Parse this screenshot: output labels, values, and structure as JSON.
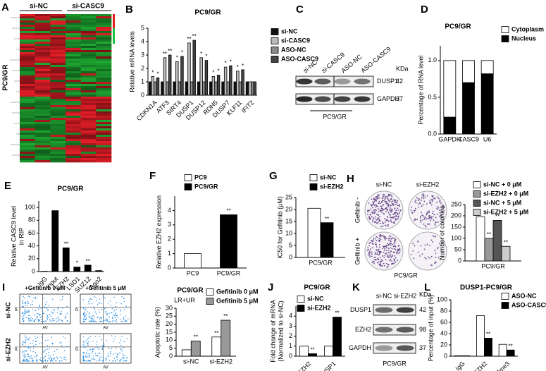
{
  "figure": {
    "A": {
      "panel": "A",
      "groups": [
        "si-NC",
        "si-CASC9"
      ],
      "cell": "PC9/GR"
    },
    "C": {
      "panel": "C",
      "lanes": [
        "si-NC",
        "si-CASC9",
        "ASO-NC",
        "ASO-CASC9"
      ],
      "unit": "KDa",
      "rows": [
        {
          "name": "DUSP1",
          "kda": 42
        },
        {
          "name": "GAPDH",
          "kda": 37
        }
      ],
      "cell": "PC9/GR"
    },
    "H": {
      "panel": "H",
      "columns": [
        "si-NC",
        "si-EZH2"
      ],
      "rows": [
        "Geftinib -",
        "Geftinib +"
      ],
      "cell": "PC9/GR"
    },
    "I": {
      "panel": "I",
      "columns": [
        "+Gefitinib 0 μM",
        "+Gefitinib 5 μM"
      ],
      "rows": [
        "si-NC",
        "si-EZH2"
      ],
      "xaxis": "AV",
      "yaxis": "PI"
    },
    "K": {
      "panel": "K",
      "lanes": [
        "si-NC",
        "si-EZH2"
      ],
      "unit": "KDa",
      "rows": [
        {
          "name": "DUSP1",
          "kda": 42
        },
        {
          "name": "EZH2",
          "kda": 98
        },
        {
          "name": "GAPDH",
          "kda": 37
        }
      ],
      "cell": "PC9/GR"
    }
  },
  "chart_data": [
    {
      "type": "bar",
      "panel": "B",
      "title": "PC9/GR",
      "ylabel": "Relative mRNA levels",
      "categories": [
        "CDKN1A",
        "ATF3",
        "SIRT4",
        "DUSP1",
        "DUSP12",
        "RDH5",
        "DUSP7",
        "KLF11",
        "IFIT2"
      ],
      "ylim": [
        0,
        5
      ],
      "yticks": [
        0,
        1,
        2,
        3,
        4,
        5
      ],
      "series": [
        {
          "name": "si-NC",
          "color": "#111111",
          "values": [
            1,
            1,
            1,
            1,
            1,
            1,
            1,
            1,
            1
          ]
        },
        {
          "name": "si-CASC9",
          "color": "#bbbbbb",
          "values": [
            1.4,
            2.8,
            2.5,
            3.9,
            2.8,
            1.4,
            2.1,
            1.8,
            1.0
          ],
          "annotations": [
            "*",
            "**",
            "*",
            "**",
            "*",
            "*",
            "*",
            "*",
            null
          ]
        },
        {
          "name": "ASO-NC",
          "color": "#888888",
          "values": [
            1,
            1,
            1,
            1,
            1,
            1,
            1,
            1,
            1
          ]
        },
        {
          "name": "ASO-CASC9",
          "color": "#444444",
          "values": [
            1.3,
            3.0,
            2.9,
            4.1,
            2.6,
            1.5,
            2.2,
            1.9,
            1.0
          ],
          "annotations": [
            "*",
            "**",
            "*",
            "**",
            "*",
            "*",
            "*",
            "*",
            null
          ]
        }
      ]
    },
    {
      "type": "bar",
      "stacked": true,
      "panel": "D",
      "title": "PC9/GR",
      "ylabel": "Percentage of RNA level",
      "categories": [
        "GAPDH",
        "CASC9",
        "U6"
      ],
      "ylim": [
        0,
        1.2
      ],
      "yticks": [
        {
          "value": 0,
          "label": "0.0"
        },
        {
          "value": 0.5,
          "label": "0.5"
        },
        {
          "value": 1,
          "label": "1.0"
        }
      ],
      "series": [
        {
          "name": "Nucleus",
          "color": "#000000",
          "values": [
            0.23,
            0.7,
            0.82
          ]
        },
        {
          "name": "Cytoplasm",
          "color": "#ffffff",
          "values": [
            0.77,
            0.3,
            0.18
          ]
        }
      ]
    },
    {
      "type": "bar",
      "panel": "E",
      "title": "PC9/GR",
      "ylabel": [
        "Relative CASC9 level",
        "in RIP"
      ],
      "categories": [
        "IgG",
        "Input",
        "EZH2",
        "LSD1",
        "SUZ12",
        "Ago2"
      ],
      "values": [
        0.5,
        95,
        37,
        7,
        10,
        1.5
      ],
      "color": "#000000",
      "annotations": [
        null,
        null,
        "**",
        "*",
        "**",
        null
      ],
      "ylim": [
        0,
        110
      ],
      "yticks": [
        0,
        20,
        40,
        60,
        80,
        100
      ]
    },
    {
      "type": "bar",
      "panel": "F",
      "ylabel": "Relative EZH2 expression",
      "categories": [
        "PC9",
        "PC9/GR"
      ],
      "ylim": [
        0,
        5
      ],
      "yticks": [
        0,
        1,
        2,
        3,
        4
      ],
      "series": [
        {
          "name": "PC9",
          "color": "#ffffff",
          "values": [
            1,
            null
          ]
        },
        {
          "name": "PC9/GR",
          "color": "#000000",
          "values": [
            null,
            3.7
          ],
          "annotations": [
            null,
            "**"
          ]
        }
      ]
    },
    {
      "type": "bar",
      "panel": "G",
      "ylabel": "IC50 for Gefitinib (μM)",
      "categories": [
        "PC9/GR"
      ],
      "ylim": [
        0,
        25
      ],
      "yticks": [
        0,
        5,
        10,
        15,
        20,
        25
      ],
      "series": [
        {
          "name": "si-NC",
          "color": "#ffffff",
          "values": [
            20.5
          ]
        },
        {
          "name": "si-EZH2",
          "color": "#000000",
          "values": [
            14.5
          ],
          "annotations": [
            "**"
          ]
        }
      ]
    },
    {
      "type": "bar",
      "ylabel": "Number of colonies",
      "categories": [
        "PC9/GR"
      ],
      "ylim": [
        0,
        250
      ],
      "yticks": [
        0,
        50,
        100,
        150,
        200,
        250
      ],
      "series": [
        {
          "name": "si-NC + 0 μM",
          "color": "#ffffff",
          "values": [
            195
          ]
        },
        {
          "name": "si-EZH2 + 0 μM",
          "color": "#999999",
          "values": [
            100
          ],
          "annotations": [
            "**"
          ]
        },
        {
          "name": "si-NC + 5 μM",
          "color": "#555555",
          "values": [
            180
          ],
          "annotations": [
            "**"
          ]
        },
        {
          "name": "si-EZH2 + 5 μM",
          "color": "#cccccc",
          "values": [
            65
          ],
          "annotations": [
            "**"
          ]
        }
      ]
    },
    {
      "type": "bar",
      "title": "PC9/GR",
      "subtitle": "LR+UR",
      "ylabel": "Apoptotic rate (%)",
      "categories": [
        "si-NC",
        "si-EZH2"
      ],
      "ylim": [
        0,
        30
      ],
      "yticks": [
        0,
        5,
        10,
        15,
        20,
        25,
        30
      ],
      "series": [
        {
          "name": "Gefitinib 0 μM",
          "color": "#ffffff",
          "values": [
            4,
            12
          ],
          "annotations": [
            null,
            "**"
          ]
        },
        {
          "name": "Gefitinib 5 μM",
          "color": "#999999",
          "values": [
            9.5,
            22.5
          ],
          "annotations": [
            "**",
            "**"
          ]
        }
      ]
    },
    {
      "type": "bar",
      "panel": "J",
      "title": "PC9/GR",
      "ylabel": [
        "Fold change of mRNA",
        "(Normalized to si-NC)"
      ],
      "categories": [
        "EZH2",
        "DUSP1"
      ],
      "ylim": [
        0,
        5
      ],
      "yticks": [
        0,
        1,
        2,
        3,
        4
      ],
      "series": [
        {
          "name": "si-NC",
          "color": "#ffffff",
          "values": [
            1,
            1
          ]
        },
        {
          "name": "si-EZH2",
          "color": "#000000",
          "values": [
            0.25,
            3.9
          ],
          "annotations": [
            "**",
            "**"
          ]
        }
      ]
    },
    {
      "type": "bar",
      "panel": "L",
      "title": "DUSP1-PC9/GR",
      "ylabel": "Percentage of input (%)",
      "categories": [
        "IgG",
        "EZH2",
        "H3K27me3"
      ],
      "ylim": [
        0,
        100
      ],
      "yticks": [
        0,
        20,
        40,
        60,
        80,
        100
      ],
      "series": [
        {
          "name": "ASO-NC",
          "color": "#ffffff",
          "values": [
            0.8,
            72,
            21
          ]
        },
        {
          "name": "ASO-CASC9",
          "color": "#000000",
          "values": [
            0.8,
            32,
            11
          ],
          "annotations": [
            null,
            "**",
            "**"
          ]
        }
      ]
    }
  ]
}
